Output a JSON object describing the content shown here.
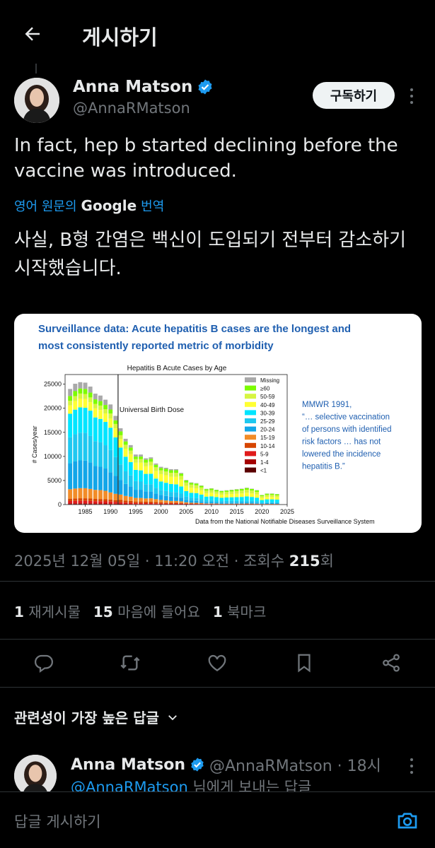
{
  "header": {
    "title": "게시하기"
  },
  "post": {
    "author_name": "Anna Matson",
    "author_handle": "@AnnaRMatson",
    "subscribe_label": "구독하기",
    "text": "In fact, hep b started declining before the vaccine was introduced.",
    "translate_prefix": "영어 원문의",
    "translate_brand": "Google",
    "translate_suffix": "번역",
    "translated_text": "사실, B형 간염은 백신이 도입되기 전부터 감소하기 시작했습니다.",
    "timestamp_prefix": "2025년 12월 05일 · 11:20 오전 · 조회수 ",
    "views": "215",
    "views_suffix": "회",
    "reposts_count": "1",
    "reposts_label": "재게시물",
    "likes_count": "15",
    "likes_label": "마음에 들어요",
    "bookmarks_count": "1",
    "bookmarks_label": "북마크"
  },
  "slide": {
    "headline_line1": "Surveillance data: Acute hepatitis B cases are the longest and",
    "headline_line2": "most consistently reported metric of morbidity",
    "side_note_lines": [
      "MMWR 1991,",
      "“… selective vaccination",
      "of persons with identified",
      "risk factors … has not",
      "lowered the incidence",
      "hepatitis B.”"
    ],
    "footer": "Data from the National Notifiable Diseases Surveillance System"
  },
  "chart_data": {
    "type": "bar",
    "stacked": true,
    "title": "Hepatitis B Acute Cases by Age",
    "ylabel": "# Cases/year",
    "xlabel": "",
    "ylim": [
      0,
      27000
    ],
    "xlim": [
      1981,
      2025
    ],
    "x_ticks": [
      1985,
      1990,
      1995,
      2000,
      2005,
      2010,
      2015,
      2020,
      2025
    ],
    "y_ticks": [
      0,
      5000,
      10000,
      15000,
      20000,
      25000
    ],
    "annotation": {
      "x": 1991.5,
      "label": "Universal Birth Dose"
    },
    "legend_position": "top-right",
    "years": [
      1982,
      1983,
      1984,
      1985,
      1986,
      1987,
      1988,
      1989,
      1990,
      1991,
      1992,
      1993,
      1994,
      1995,
      1996,
      1997,
      1998,
      1999,
      2000,
      2001,
      2002,
      2003,
      2004,
      2005,
      2006,
      2007,
      2008,
      2009,
      2010,
      2011,
      2012,
      2013,
      2014,
      2015,
      2016,
      2017,
      2018,
      2019,
      2020,
      2021,
      2022,
      2023
    ],
    "totals": [
      24500,
      25600,
      26200,
      26100,
      25000,
      23500,
      23100,
      22000,
      21000,
      18600,
      16000,
      13800,
      12600,
      10600,
      10600,
      9800,
      10000,
      8700,
      8000,
      7800,
      7500,
      7500,
      6700,
      5200,
      4700,
      4500,
      4000,
      3300,
      3400,
      3100,
      2900,
      3000,
      3100,
      3200,
      3300,
      3500,
      3300,
      3000,
      2000,
      2300,
      2300,
      2200
    ],
    "series": [
      {
        "name": "Missing",
        "color": "#a9a9a9",
        "share": [
          0.06,
          0.06,
          0.05,
          0.05,
          0.05,
          0.05,
          0.05,
          0.05,
          0.05,
          0.05,
          0.04,
          0.04,
          0.04,
          0.04,
          0.04,
          0.03,
          0.03,
          0.03,
          0.03,
          0.03,
          0.03,
          0.03,
          0.02,
          0.02,
          0.02,
          0.02,
          0.02,
          0.02,
          0.02,
          0.02,
          0.02,
          0.02,
          0.02,
          0.02,
          0.02,
          0.02,
          0.02,
          0.02,
          0.02,
          0.02,
          0.02,
          0.02
        ]
      },
      {
        "name": "≥60",
        "color": "#7cfc00",
        "share": [
          0.04,
          0.04,
          0.04,
          0.04,
          0.04,
          0.04,
          0.04,
          0.04,
          0.04,
          0.04,
          0.05,
          0.05,
          0.05,
          0.05,
          0.05,
          0.06,
          0.06,
          0.06,
          0.06,
          0.07,
          0.07,
          0.07,
          0.07,
          0.08,
          0.08,
          0.08,
          0.08,
          0.09,
          0.09,
          0.09,
          0.09,
          0.09,
          0.09,
          0.1,
          0.1,
          0.1,
          0.1,
          0.1,
          0.11,
          0.11,
          0.11,
          0.11
        ]
      },
      {
        "name": "50-59",
        "color": "#d7f542",
        "share": [
          0.04,
          0.04,
          0.04,
          0.04,
          0.04,
          0.04,
          0.04,
          0.04,
          0.05,
          0.05,
          0.05,
          0.06,
          0.06,
          0.07,
          0.07,
          0.08,
          0.08,
          0.09,
          0.1,
          0.1,
          0.11,
          0.11,
          0.12,
          0.13,
          0.14,
          0.14,
          0.15,
          0.16,
          0.16,
          0.16,
          0.17,
          0.17,
          0.17,
          0.18,
          0.18,
          0.18,
          0.18,
          0.18,
          0.18,
          0.18,
          0.18,
          0.18
        ]
      },
      {
        "name": "40-49",
        "color": "#ffff33",
        "share": [
          0.07,
          0.07,
          0.07,
          0.07,
          0.07,
          0.08,
          0.08,
          0.08,
          0.09,
          0.1,
          0.11,
          0.12,
          0.13,
          0.14,
          0.15,
          0.16,
          0.17,
          0.18,
          0.19,
          0.2,
          0.2,
          0.21,
          0.21,
          0.21,
          0.22,
          0.22,
          0.22,
          0.22,
          0.22,
          0.22,
          0.22,
          0.22,
          0.22,
          0.22,
          0.22,
          0.22,
          0.22,
          0.22,
          0.22,
          0.22,
          0.22,
          0.22
        ]
      },
      {
        "name": "30-39",
        "color": "#00e5ff",
        "share": [
          0.2,
          0.2,
          0.2,
          0.2,
          0.21,
          0.21,
          0.21,
          0.22,
          0.22,
          0.22,
          0.22,
          0.22,
          0.22,
          0.22,
          0.22,
          0.22,
          0.22,
          0.22,
          0.22,
          0.22,
          0.22,
          0.22,
          0.22,
          0.22,
          0.22,
          0.23,
          0.23,
          0.23,
          0.23,
          0.24,
          0.24,
          0.24,
          0.24,
          0.24,
          0.24,
          0.24,
          0.24,
          0.24,
          0.24,
          0.24,
          0.24,
          0.24
        ]
      },
      {
        "name": "25-29",
        "color": "#1ec8f0",
        "share": [
          0.22,
          0.22,
          0.22,
          0.22,
          0.22,
          0.22,
          0.22,
          0.22,
          0.22,
          0.21,
          0.2,
          0.19,
          0.18,
          0.17,
          0.16,
          0.15,
          0.15,
          0.14,
          0.13,
          0.13,
          0.13,
          0.13,
          0.13,
          0.13,
          0.13,
          0.13,
          0.13,
          0.12,
          0.12,
          0.12,
          0.12,
          0.12,
          0.12,
          0.11,
          0.11,
          0.11,
          0.11,
          0.11,
          0.1,
          0.1,
          0.1,
          0.1
        ]
      },
      {
        "name": "20-24",
        "color": "#12a6e8",
        "share": [
          0.22,
          0.22,
          0.22,
          0.22,
          0.22,
          0.21,
          0.21,
          0.21,
          0.2,
          0.2,
          0.19,
          0.18,
          0.17,
          0.16,
          0.16,
          0.15,
          0.14,
          0.13,
          0.13,
          0.12,
          0.12,
          0.11,
          0.11,
          0.1,
          0.09,
          0.09,
          0.08,
          0.08,
          0.08,
          0.07,
          0.07,
          0.07,
          0.07,
          0.07,
          0.07,
          0.07,
          0.07,
          0.07,
          0.07,
          0.07,
          0.07,
          0.07
        ]
      },
      {
        "name": "15-19",
        "color": "#f28c28",
        "share": [
          0.08,
          0.08,
          0.08,
          0.08,
          0.08,
          0.08,
          0.08,
          0.08,
          0.07,
          0.07,
          0.07,
          0.07,
          0.07,
          0.07,
          0.07,
          0.07,
          0.07,
          0.07,
          0.06,
          0.06,
          0.05,
          0.05,
          0.05,
          0.04,
          0.03,
          0.03,
          0.03,
          0.02,
          0.02,
          0.02,
          0.02,
          0.02,
          0.02,
          0.02,
          0.02,
          0.02,
          0.02,
          0.02,
          0.02,
          0.02,
          0.02,
          0.02
        ]
      },
      {
        "name": "10-14",
        "color": "#d64500",
        "share": [
          0.02,
          0.02,
          0.02,
          0.02,
          0.02,
          0.02,
          0.02,
          0.02,
          0.02,
          0.02,
          0.03,
          0.03,
          0.03,
          0.03,
          0.03,
          0.03,
          0.03,
          0.03,
          0.03,
          0.02,
          0.02,
          0.02,
          0.02,
          0.02,
          0.02,
          0.02,
          0.02,
          0.02,
          0.02,
          0.02,
          0.02,
          0.02,
          0.02,
          0.02,
          0.02,
          0.02,
          0.02,
          0.02,
          0.02,
          0.02,
          0.02,
          0.02
        ]
      },
      {
        "name": "5-9",
        "color": "#e01b1b",
        "share": [
          0.02,
          0.02,
          0.02,
          0.02,
          0.02,
          0.02,
          0.02,
          0.02,
          0.02,
          0.02,
          0.02,
          0.02,
          0.02,
          0.02,
          0.02,
          0.02,
          0.02,
          0.02,
          0.02,
          0.02,
          0.02,
          0.02,
          0.02,
          0.02,
          0.02,
          0.02,
          0.02,
          0.02,
          0.02,
          0.02,
          0.01,
          0.01,
          0.01,
          0.01,
          0.01,
          0.01,
          0.01,
          0.01,
          0.01,
          0.01,
          0.01,
          0.01
        ]
      },
      {
        "name": "1-4",
        "color": "#a50000",
        "share": [
          0.005,
          0.005,
          0.005,
          0.005,
          0.005,
          0.005,
          0.005,
          0.005,
          0.005,
          0.005,
          0.005,
          0.005,
          0.005,
          0.005,
          0.005,
          0.005,
          0.005,
          0.005,
          0.005,
          0.005,
          0.005,
          0.005,
          0.005,
          0.005,
          0.005,
          0.005,
          0.005,
          0.005,
          0.005,
          0.005,
          0.005,
          0.005,
          0.005,
          0.005,
          0.005,
          0.005,
          0.005,
          0.005,
          0.005,
          0.005,
          0.005,
          0.005
        ]
      },
      {
        "name": "<1",
        "color": "#5a0000",
        "share": [
          0.005,
          0.005,
          0.005,
          0.005,
          0.005,
          0.005,
          0.005,
          0.005,
          0.005,
          0.005,
          0.005,
          0.005,
          0.005,
          0.005,
          0.005,
          0.005,
          0.005,
          0.005,
          0.005,
          0.005,
          0.005,
          0.005,
          0.005,
          0.005,
          0.005,
          0.005,
          0.005,
          0.005,
          0.005,
          0.005,
          0.005,
          0.005,
          0.005,
          0.005,
          0.005,
          0.005,
          0.005,
          0.005,
          0.005,
          0.005,
          0.005,
          0.005
        ]
      }
    ]
  },
  "replies": {
    "header": "관련성이 가장 높은 답글",
    "first": {
      "author_name": "Anna Matson",
      "meta": "@AnnaRMatson · 18시",
      "context_mention": "@AnnaRMatson",
      "context_suffix": " 님에게 보내는 답글"
    }
  },
  "composer": {
    "placeholder": "답글 게시하기"
  },
  "icons": {
    "back": "arrow-left-icon",
    "verified": "verified-badge-icon",
    "reply": "reply-bubble-icon",
    "repost": "repost-arrows-icon",
    "like": "heart-icon",
    "bookmark": "bookmark-icon",
    "share": "share-nodes-icon",
    "camera": "camera-icon",
    "chevron": "chevron-down-icon"
  },
  "colors": {
    "accent": "#1d9bf0",
    "background": "#000000",
    "muted": "#71767b"
  }
}
